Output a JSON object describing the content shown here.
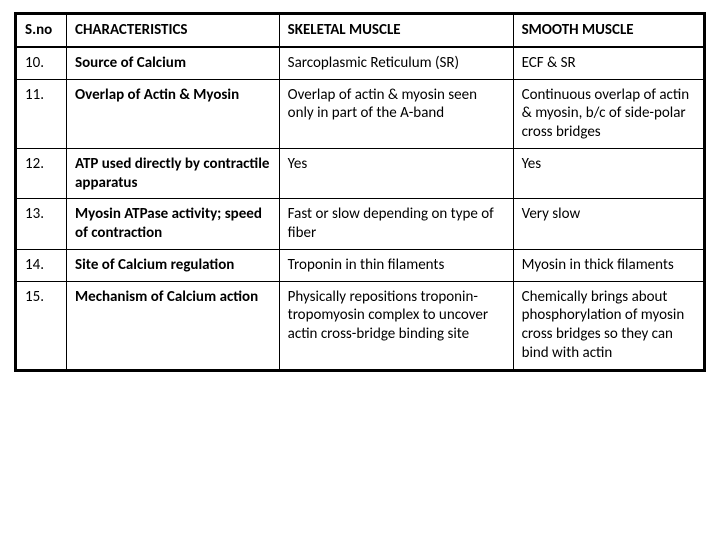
{
  "table": {
    "headers": {
      "sno": "S.no",
      "characteristics": "CHARACTERISTICS",
      "skeletal": "SKELETAL MUSCLE",
      "smooth": "SMOOTH MUSCLE"
    },
    "rows": [
      {
        "sno": "10.",
        "char": "Source of Calcium",
        "skel": "Sarcoplasmic Reticulum (SR)",
        "smooth": "ECF & SR"
      },
      {
        "sno": "11.",
        "char": "Overlap of Actin & Myosin",
        "skel": "Overlap of actin & myosin seen only in part of the A-band",
        "smooth": "Continuous overlap of actin & myosin, b/c of side-polar cross bridges"
      },
      {
        "sno": "12.",
        "char": "ATP used directly by contractile apparatus",
        "skel": "Yes",
        "smooth": "Yes"
      },
      {
        "sno": "13.",
        "char": "Myosin ATPase activity; speed of contraction",
        "skel": "Fast or slow depending on type of fiber",
        "smooth": "Very slow"
      },
      {
        "sno": "14.",
        "char": "Site of Calcium regulation",
        "skel": "Troponin in thin filaments",
        "smooth": "Myosin in thick filaments"
      },
      {
        "sno": "15.",
        "char": "Mechanism of Calcium action",
        "skel": "Physically repositions troponin-tropomyosin complex to uncover actin cross-bridge binding site",
        "smooth": "Chemically brings about phosphorylation of myosin cross bridges so they can bind with actin"
      }
    ]
  }
}
